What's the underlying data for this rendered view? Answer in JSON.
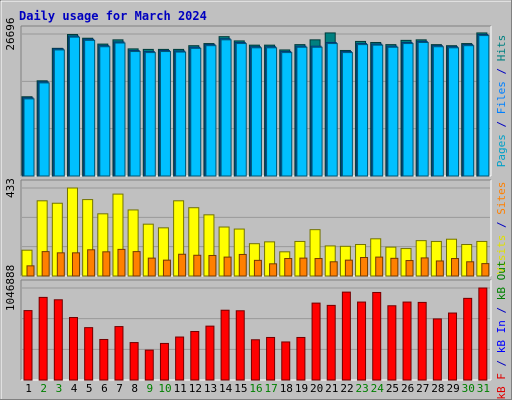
{
  "chart_data": {
    "type": "bar",
    "title": "Daily usage for March 2024",
    "categories": [
      "1",
      "2",
      "3",
      "4",
      "5",
      "6",
      "7",
      "8",
      "9",
      "10",
      "11",
      "12",
      "13",
      "14",
      "15",
      "16",
      "17",
      "18",
      "19",
      "20",
      "21",
      "22",
      "23",
      "24",
      "25",
      "26",
      "27",
      "28",
      "29",
      "30",
      "31"
    ],
    "weekend_days": [
      "2",
      "3",
      "9",
      "10",
      "16",
      "17",
      "23",
      "24",
      "30",
      "31"
    ],
    "panels": [
      {
        "id": "hits",
        "max_label": "26696",
        "y_label_parts": [
          {
            "text": "Pages",
            "color": "#00A0C8"
          },
          {
            "text": " / ",
            "color": "#0000C0"
          },
          {
            "text": "Files",
            "color": "#0080FF"
          },
          {
            "text": " / ",
            "color": "#0000C0"
          },
          {
            "text": "Hits",
            "color": "#008080"
          }
        ],
        "ymax": 26696,
        "series": [
          {
            "name": "Hits",
            "color": "#008080",
            "values": [
              14900,
              17900,
              24000,
              26600,
              25900,
              24800,
              25600,
              23900,
              23800,
              23800,
              23800,
              24500,
              24900,
              26200,
              25400,
              24600,
              24600,
              23700,
              24700,
              25600,
              26900,
              23600,
              25300,
              25100,
              24700,
              25500,
              25600,
              24700,
              24500,
              24900,
              26900
            ]
          },
          {
            "name": "Files",
            "color": "#0080FF",
            "values": [
              14700,
              17700,
              23900,
              26300,
              25700,
              24500,
              25200,
              23600,
              23400,
              23600,
              23500,
              24200,
              24700,
              25800,
              25100,
              24300,
              24300,
              23400,
              24400,
              24400,
              25100,
              23400,
              24900,
              24800,
              24400,
              25100,
              25300,
              24500,
              24300,
              24700,
              26600
            ]
          },
          {
            "name": "Pages",
            "color": "#00C0FF",
            "values": [
              14500,
              17500,
              23700,
              26100,
              25500,
              24300,
              25000,
              23400,
              23200,
              23400,
              23300,
              24000,
              24500,
              25600,
              24900,
              24100,
              24100,
              23200,
              24200,
              24200,
              24900,
              23200,
              24700,
              24600,
              24200,
              24900,
              25100,
              24300,
              24100,
              24500,
              26400
            ]
          }
        ]
      },
      {
        "id": "visits",
        "max_label": "433",
        "y_label_parts": [
          {
            "text": "Visits",
            "color": "#E0E000"
          },
          {
            "text": " / ",
            "color": "#0000C0"
          },
          {
            "text": "Sites",
            "color": "#FF8000"
          }
        ],
        "ymax": 433,
        "series": [
          {
            "name": "Visits",
            "color": "#FFFF00",
            "values": [
              127,
              370,
              358,
              433,
              376,
              306,
              403,
              325,
              255,
              237,
              370,
              336,
              301,
              241,
              231,
              159,
              168,
              119,
              170,
              228,
              148,
              146,
              155,
              183,
              142,
              135,
              174,
              170,
              181,
              155,
              170
            ]
          },
          {
            "name": "Sites",
            "color": "#FF8000",
            "values": [
              50,
              120,
              114,
              114,
              129,
              119,
              131,
              120,
              88,
              78,
              107,
              102,
              101,
              93,
              106,
              77,
              60,
              86,
              88,
              86,
              70,
              78,
              91,
              93,
              87,
              76,
              89,
              74,
              86,
              70,
              61
            ]
          }
        ]
      },
      {
        "id": "kbytes",
        "max_label": "1046888",
        "y_label_parts": [
          {
            "text": "kB F",
            "color": "#E00000"
          },
          {
            "text": " / ",
            "color": "#0000C0"
          },
          {
            "text": "kB In",
            "color": "#0000FF"
          },
          {
            "text": " / ",
            "color": "#0000C0"
          },
          {
            "text": "kB Out",
            "color": "#008000"
          }
        ],
        "ymax": 1046888,
        "series": [
          {
            "name": "kB F",
            "color": "#FF0000",
            "values": [
              790000,
              940000,
              913000,
              711000,
              596000,
              461000,
              608000,
              426000,
              340000,
              416000,
              489000,
              552000,
              613000,
              794000,
              788000,
              458000,
              484000,
              433000,
              484000,
              875000,
              849000,
              1000000,
              887000,
              996000,
              845000,
              887000,
              883000,
              695000,
              762000,
              929000,
              1046888
            ]
          }
        ]
      }
    ]
  }
}
